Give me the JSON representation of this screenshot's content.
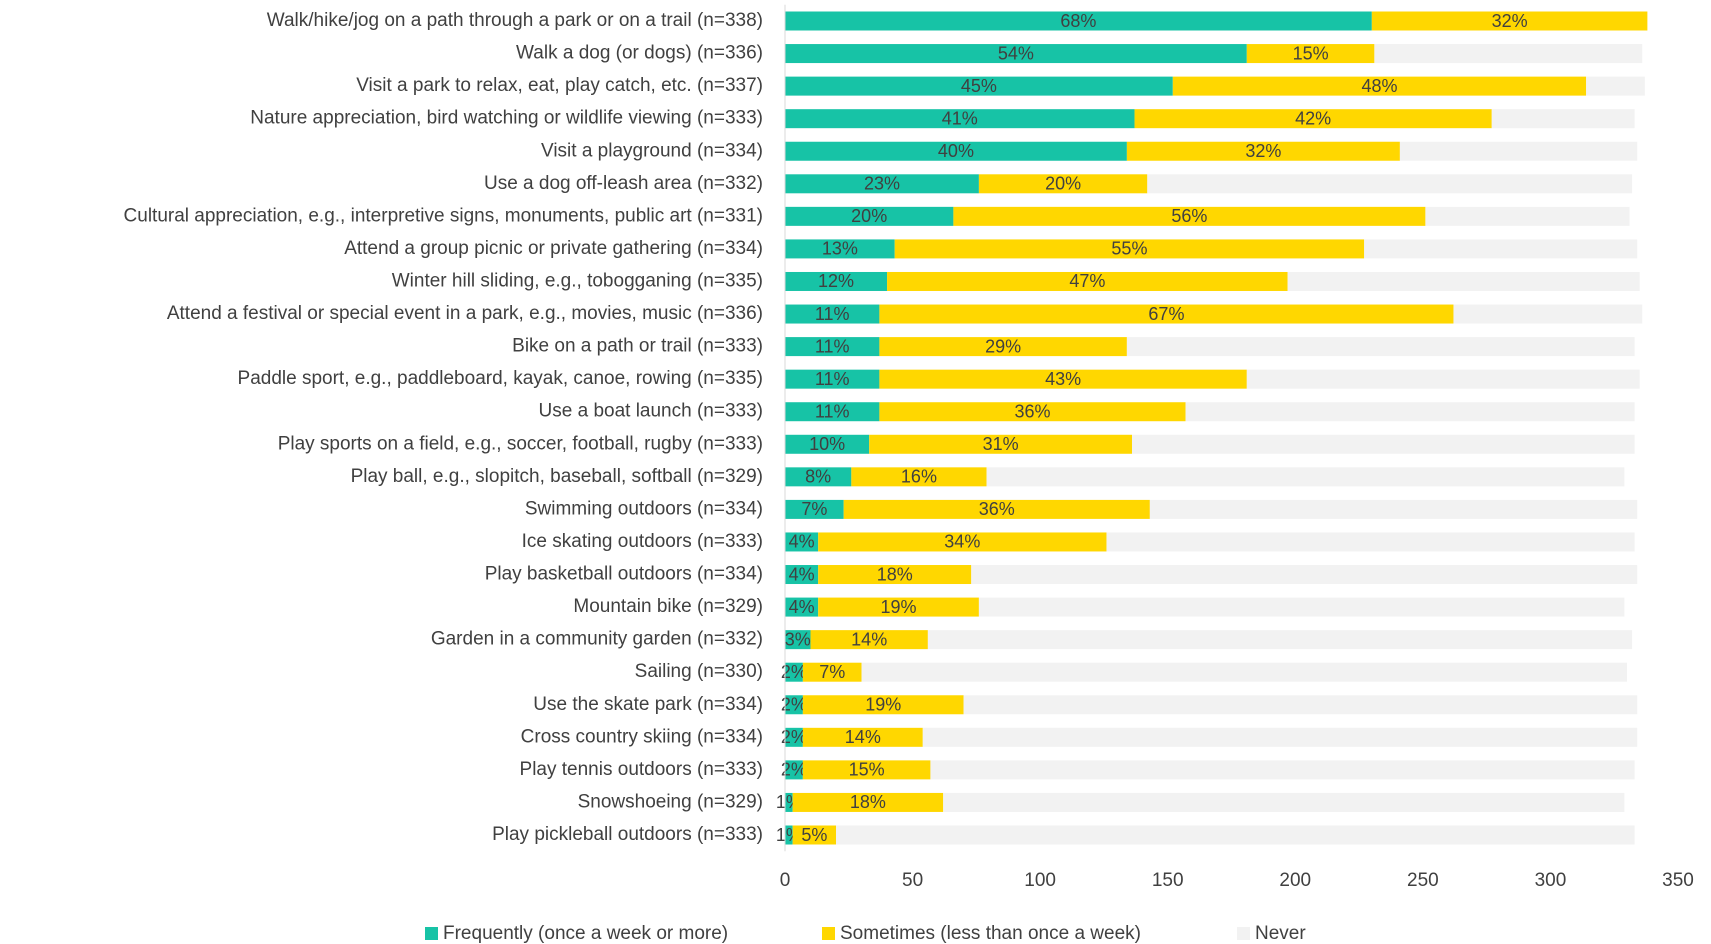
{
  "chart_data": {
    "type": "stacked_barh",
    "categories": [
      "Walk/hike/jog on a path through a park or on a trail (n=338)",
      "Walk a dog (or dogs) (n=336)",
      "Visit a park to relax, eat, play catch, etc. (n=337)",
      "Nature appreciation, bird watching or wildlife viewing (n=333)",
      "Visit a playground (n=334)",
      "Use a dog off-leash area (n=332)",
      "Cultural appreciation, e.g., interpretive signs, monuments, public art (n=331)",
      "Attend a group picnic or private gathering (n=334)",
      "Winter hill sliding, e.g., tobogganing (n=335)",
      "Attend a festival or special event in a park, e.g., movies, music (n=336)",
      "Bike on a path or trail (n=333)",
      "Paddle sport, e.g., paddleboard, kayak, canoe, rowing (n=335)",
      "Use a boat launch (n=333)",
      "Play sports on a field, e.g., soccer, football, rugby (n=333)",
      "Play ball, e.g., slopitch, baseball, softball (n=329)",
      "Swimming outdoors (n=334)",
      "Ice skating outdoors (n=333)",
      "Play basketball outdoors (n=334)",
      "Mountain bike (n=329)",
      "Garden in a community garden (n=332)",
      "Sailing (n=330)",
      "Use the skate park (n=334)",
      "Cross country skiing (n=334)",
      "Play tennis outdoors (n=333)",
      "Snowshoeing (n=329)",
      "Play pickleball outdoors (n=333)"
    ],
    "series": [
      {
        "name": "Frequently (once a week or more)",
        "color": "#17c3a6",
        "values": [
          230,
          181,
          152,
          137,
          134,
          76,
          66,
          43,
          40,
          37,
          37,
          37,
          37,
          33,
          26,
          23,
          13,
          13,
          13,
          10,
          7,
          7,
          7,
          7,
          3,
          3
        ],
        "value_labels": [
          "68%",
          "54%",
          "45%",
          "41%",
          "40%",
          "23%",
          "20%",
          "13%",
          "12%",
          "11%",
          "11%",
          "11%",
          "11%",
          "10%",
          "8%",
          "7%",
          "4%",
          "4%",
          "4%",
          "3%",
          "2%",
          "2%",
          "2%",
          "2%",
          "1%",
          "1%"
        ]
      },
      {
        "name": "Sometimes (less than once a week)",
        "color": "#ffd700",
        "values": [
          108,
          50,
          162,
          140,
          107,
          66,
          185,
          184,
          157,
          225,
          97,
          144,
          120,
          103,
          53,
          120,
          113,
          60,
          63,
          46,
          23,
          63,
          47,
          50,
          59,
          17
        ],
        "value_labels": [
          "32%",
          "15%",
          "48%",
          "42%",
          "32%",
          "20%",
          "56%",
          "55%",
          "47%",
          "67%",
          "29%",
          "43%",
          "36%",
          "31%",
          "16%",
          "36%",
          "34%",
          "18%",
          "19%",
          "14%",
          "7%",
          "19%",
          "14%",
          "15%",
          "18%",
          "5%"
        ]
      },
      {
        "name": "Never",
        "color": "#f2f2f2",
        "values": [
          0,
          105,
          23,
          56,
          93,
          190,
          80,
          107,
          138,
          74,
          199,
          154,
          176,
          197,
          250,
          191,
          207,
          261,
          253,
          276,
          300,
          264,
          280,
          276,
          267,
          313
        ]
      }
    ],
    "xlim": [
      0,
      350
    ],
    "xticks": [
      0,
      50,
      100,
      150,
      200,
      250,
      300,
      350
    ],
    "legend": "bottom"
  }
}
